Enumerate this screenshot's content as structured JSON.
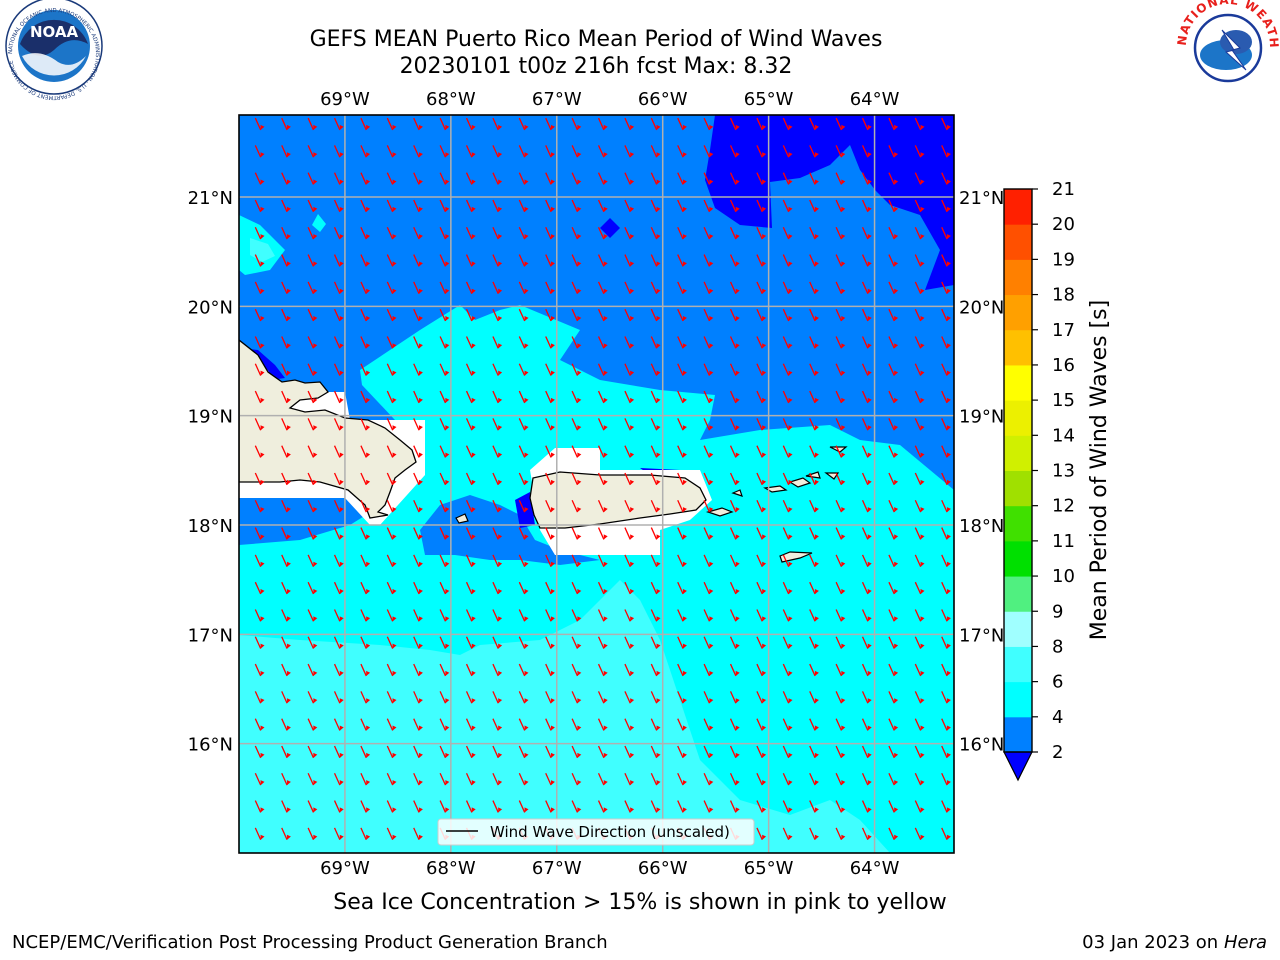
{
  "title_line1": "GEFS MEAN Puerto Rico Mean Period of Wind Waves",
  "title_line2": "20230101 t00z 216h fcst   Max: 8.32",
  "map": {
    "lon_labels": [
      "69°W",
      "68°W",
      "67°W",
      "66°W",
      "65°W",
      "64°W"
    ],
    "lat_labels": [
      "21°N",
      "20°N",
      "19°N",
      "18°N",
      "17°N",
      "16°N"
    ],
    "extent": {
      "lon_min": -70.0,
      "lon_max": -63.25,
      "lat_min": 15.0,
      "lat_max": 21.75
    },
    "legend_label": "Wind Wave Direction (unscaled)",
    "wind_direction": "toward southwest",
    "arrow_color": "#ff0000",
    "land_color": "#efeedd",
    "ocean_color_dominant": "#0080ff"
  },
  "colorbar": {
    "label": "Mean Period of Wind Waves [s]",
    "ticks": [
      "2",
      "4",
      "6",
      "8",
      "9",
      "10",
      "11",
      "12",
      "13",
      "14",
      "15",
      "16",
      "17",
      "18",
      "19",
      "20",
      "21"
    ],
    "levels": [
      {
        "from": 2,
        "to": 4,
        "color": "#0080ff"
      },
      {
        "from": 4,
        "to": 6,
        "color": "#00ffff"
      },
      {
        "from": 6,
        "to": 8,
        "color": "#40ffff"
      },
      {
        "from": 8,
        "to": 9,
        "color": "#a0ffff"
      },
      {
        "from": 9,
        "to": 10,
        "color": "#50f080"
      },
      {
        "from": 10,
        "to": 11,
        "color": "#00e000"
      },
      {
        "from": 11,
        "to": 12,
        "color": "#40e000"
      },
      {
        "from": 12,
        "to": 13,
        "color": "#a0e000"
      },
      {
        "from": 13,
        "to": 14,
        "color": "#d0f000"
      },
      {
        "from": 14,
        "to": 15,
        "color": "#ecf000"
      },
      {
        "from": 15,
        "to": 16,
        "color": "#ffff00"
      },
      {
        "from": 16,
        "to": 17,
        "color": "#ffc000"
      },
      {
        "from": 17,
        "to": 18,
        "color": "#ffa000"
      },
      {
        "from": 18,
        "to": 19,
        "color": "#ff8000"
      },
      {
        "from": 19,
        "to": 20,
        "color": "#ff5000"
      },
      {
        "from": 20,
        "to": 21,
        "color": "#ff2000"
      }
    ],
    "under_color": "#0000ff",
    "top_color": "#ff0000"
  },
  "footer_note": "Sea Ice Concentration > 15% is shown in pink to yellow",
  "credit": "NCEP/EMC/Verification Post Processing Product Generation Branch",
  "date_text": "03 Jan 2023 on ",
  "date_host": "Hera",
  "logos": {
    "noaa_text": "NOAA",
    "noaa_ring_text": "NATIONAL OCEANIC AND ATMOSPHERIC ADMINISTRATION · U.S. DEPARTMENT OF COMMERCE",
    "nws_ring_text": "NATIONAL WEATHER SERVICE"
  }
}
